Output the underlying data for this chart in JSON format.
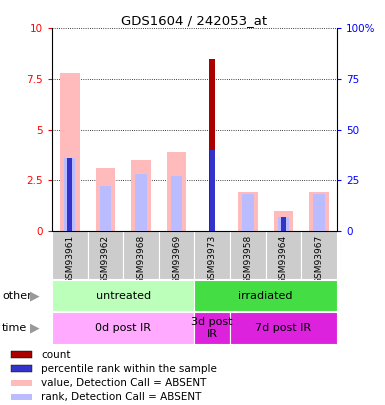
{
  "title": "GDS1604 / 242053_at",
  "samples": [
    "GSM93961",
    "GSM93962",
    "GSM93968",
    "GSM93969",
    "GSM93973",
    "GSM93958",
    "GSM93964",
    "GSM93967"
  ],
  "count_values": [
    0.0,
    0.0,
    0.0,
    0.0,
    8.5,
    0.0,
    0.0,
    0.0
  ],
  "percentile_rank": [
    3.6,
    0.0,
    0.0,
    0.0,
    4.0,
    0.0,
    0.7,
    0.0
  ],
  "value_absent": [
    7.8,
    3.1,
    3.5,
    3.9,
    0.0,
    1.9,
    1.0,
    1.9
  ],
  "rank_absent": [
    3.6,
    2.2,
    2.8,
    2.7,
    0.0,
    1.8,
    0.7,
    1.8
  ],
  "ylim": [
    0,
    10
  ],
  "y2lim": [
    0,
    100
  ],
  "yticks": [
    0,
    2.5,
    5,
    7.5,
    10
  ],
  "ytick_labels": [
    "0",
    "2.5",
    "5",
    "7.5",
    "10"
  ],
  "y2ticks": [
    0,
    25,
    50,
    75,
    100
  ],
  "y2tick_labels": [
    "0",
    "25",
    "50",
    "75",
    "100%"
  ],
  "color_count": "#aa0000",
  "color_percentile": "#3333cc",
  "color_value_absent": "#ffbbbb",
  "color_rank_absent": "#bbbbff",
  "group_other": [
    {
      "label": "untreated",
      "start": 0,
      "end": 4,
      "color": "#bbffbb"
    },
    {
      "label": "irradiated",
      "start": 4,
      "end": 8,
      "color": "#44dd44"
    }
  ],
  "group_time": [
    {
      "label": "0d post IR",
      "start": 0,
      "end": 4,
      "color": "#ffaaff"
    },
    {
      "label": "3d post\nIR",
      "start": 4,
      "end": 5,
      "color": "#dd22dd"
    },
    {
      "label": "7d post IR",
      "start": 5,
      "end": 8,
      "color": "#dd22dd"
    }
  ],
  "legend_items": [
    {
      "label": "count",
      "color": "#aa0000"
    },
    {
      "label": "percentile rank within the sample",
      "color": "#3333cc"
    },
    {
      "label": "value, Detection Call = ABSENT",
      "color": "#ffbbbb"
    },
    {
      "label": "rank, Detection Call = ABSENT",
      "color": "#bbbbff"
    }
  ],
  "bar_width": 0.35,
  "tick_bg_color": "#cccccc",
  "left_labels": [
    "other",
    "time"
  ]
}
